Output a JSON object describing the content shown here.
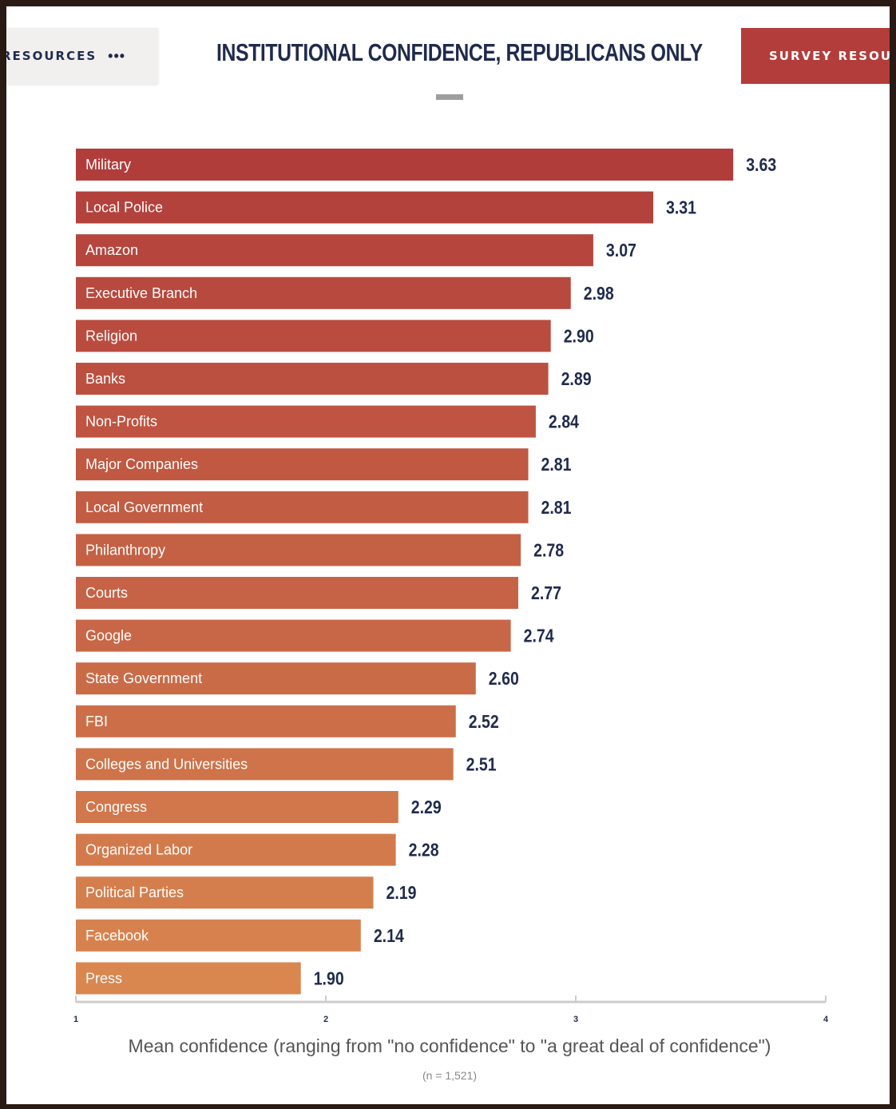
{
  "nav": {
    "left_tab": "RESOURCES",
    "left_more": "•••",
    "right_tab": "SURVEY RESOURCES"
  },
  "colors": {
    "bar_start": "#b13d3b",
    "bar_end": "#d9864f",
    "text": "#1f2b4d",
    "accent": "#b23d3b"
  },
  "chart_data": {
    "type": "bar",
    "orientation": "horizontal",
    "title": "INSTITUTIONAL CONFIDENCE, REPUBLICANS ONLY",
    "xlabel": "Mean confidence (ranging from \"no confidence\" to \"a great deal of confidence\")",
    "note": "(n = 1,521)",
    "xlim": [
      1,
      4
    ],
    "xticks": [
      "1",
      "2",
      "3",
      "4"
    ],
    "categories": [
      "Military",
      "Local Police",
      "Amazon",
      "Executive Branch",
      "Religion",
      "Banks",
      "Non-Profits",
      "Major Companies",
      "Local Government",
      "Philanthropy",
      "Courts",
      "Google",
      "State Government",
      "FBI",
      "Colleges and Universities",
      "Congress",
      "Organized Labor",
      "Political Parties",
      "Facebook",
      "Press"
    ],
    "values": [
      3.63,
      3.31,
      3.07,
      2.98,
      2.9,
      2.89,
      2.84,
      2.81,
      2.81,
      2.78,
      2.77,
      2.74,
      2.6,
      2.52,
      2.51,
      2.29,
      2.28,
      2.19,
      2.14,
      1.9
    ],
    "value_labels": [
      "3.63",
      "3.31",
      "3.07",
      "2.98",
      "2.90",
      "2.89",
      "2.84",
      "2.81",
      "2.81",
      "2.78",
      "2.77",
      "2.74",
      "2.60",
      "2.52",
      "2.51",
      "2.29",
      "2.28",
      "2.19",
      "2.14",
      "1.90"
    ]
  }
}
